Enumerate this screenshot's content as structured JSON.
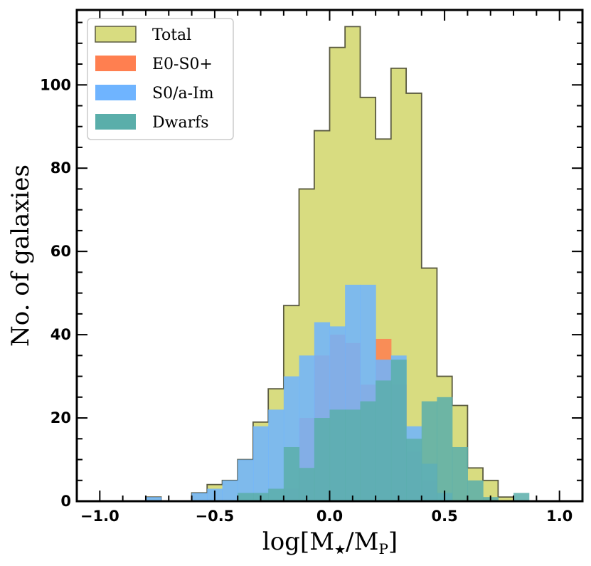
{
  "chart_data": {
    "type": "histogram",
    "title": "",
    "xlabel": "log[M★/Mₚ]",
    "xlabel_parts": {
      "main": "log[M",
      "sub1": "★",
      "mid": "/M",
      "sub2": "P",
      "end": "]"
    },
    "ylabel": "No. of galaxies",
    "xlim": [
      -1.1,
      1.1
    ],
    "ylim": [
      0,
      118
    ],
    "xticks": [
      -1.0,
      -0.5,
      0.0,
      0.5,
      1.0
    ],
    "xtick_labels": [
      "−1.0",
      "−0.5",
      "0.0",
      "0.5",
      "1.0"
    ],
    "yticks": [
      0,
      20,
      40,
      60,
      80,
      100
    ],
    "ytick_labels": [
      "0",
      "20",
      "40",
      "60",
      "80",
      "100"
    ],
    "bin_edges": [
      -1.0,
      -0.933,
      -0.867,
      -0.8,
      -0.733,
      -0.667,
      -0.6,
      -0.533,
      -0.467,
      -0.4,
      -0.333,
      -0.267,
      -0.2,
      -0.133,
      -0.067,
      0.0,
      0.067,
      0.133,
      0.2,
      0.267,
      0.333,
      0.4,
      0.467,
      0.533,
      0.6,
      0.667,
      0.733,
      0.8,
      0.867,
      0.933,
      1.0
    ],
    "grid": false,
    "legend_position": "top-left",
    "series": [
      {
        "name": "Total",
        "color": "#d8dc80",
        "edge": "#5a5a40",
        "values": [
          0,
          0,
          0,
          1,
          0,
          0,
          2,
          4,
          5,
          10,
          19,
          27,
          47,
          75,
          89,
          109,
          114,
          97,
          87,
          104,
          98,
          56,
          30,
          23,
          8,
          5,
          1,
          0,
          0,
          0
        ]
      },
      {
        "name": "E0-S0+",
        "color": "#ff7f50",
        "values": [
          0,
          0,
          0,
          0,
          0,
          0,
          0,
          0,
          0,
          0,
          0,
          0,
          3,
          20,
          35,
          40,
          38,
          28,
          39,
          28,
          12,
          5,
          0,
          0,
          0,
          0,
          0,
          0,
          0,
          0
        ]
      },
      {
        "name": "S0/a-Im",
        "color": "#6fb4ff",
        "values": [
          0,
          0,
          0,
          1,
          0,
          0,
          2,
          3,
          5,
          10,
          18,
          22,
          30,
          35,
          43,
          42,
          52,
          52,
          34,
          35,
          18,
          9,
          2,
          0,
          0,
          0,
          0,
          0,
          0,
          0
        ]
      },
      {
        "name": "Dwarfs",
        "color": "#5aaeaa",
        "values": [
          0,
          0,
          0,
          0,
          0,
          0,
          0,
          0,
          0,
          2,
          2,
          3,
          13,
          8,
          20,
          22,
          22,
          24,
          29,
          34,
          15,
          24,
          25,
          13,
          5,
          1,
          0,
          2,
          0,
          0
        ]
      }
    ]
  }
}
